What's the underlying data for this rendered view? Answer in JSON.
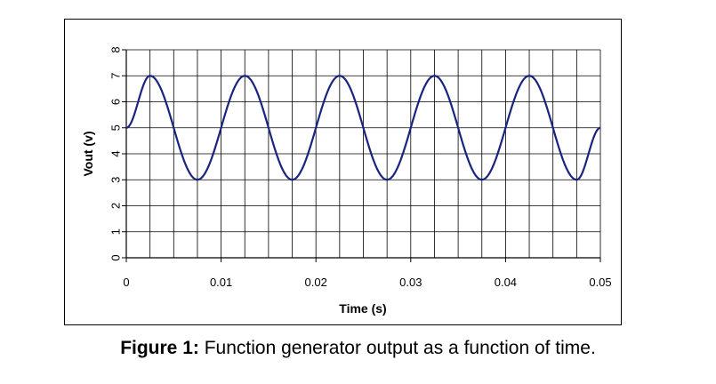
{
  "chart_data": {
    "type": "line",
    "xlabel": "Time (s)",
    "ylabel": "Vout (v)",
    "xlim": [
      0,
      0.05
    ],
    "ylim": [
      0,
      8
    ],
    "x_ticks": [
      "0",
      "0.01",
      "0.02",
      "0.03",
      "0.04",
      "0.05"
    ],
    "y_ticks": [
      "0",
      "1",
      "2",
      "3",
      "4",
      "5",
      "6",
      "7",
      "8"
    ],
    "grid": true,
    "legend": "none",
    "series": [
      {
        "color": "#1a237e",
        "x": [
          0,
          0.0025,
          0.0075,
          0.0125,
          0.0175,
          0.0225,
          0.0275,
          0.0325,
          0.0375,
          0.0425,
          0.0475,
          0.05
        ],
        "y": [
          5,
          7,
          3,
          7,
          3,
          7,
          3,
          7,
          3,
          7,
          3,
          5
        ]
      }
    ]
  },
  "caption": {
    "label": "Figure 1:",
    "text": " Function generator output as a function of time."
  }
}
